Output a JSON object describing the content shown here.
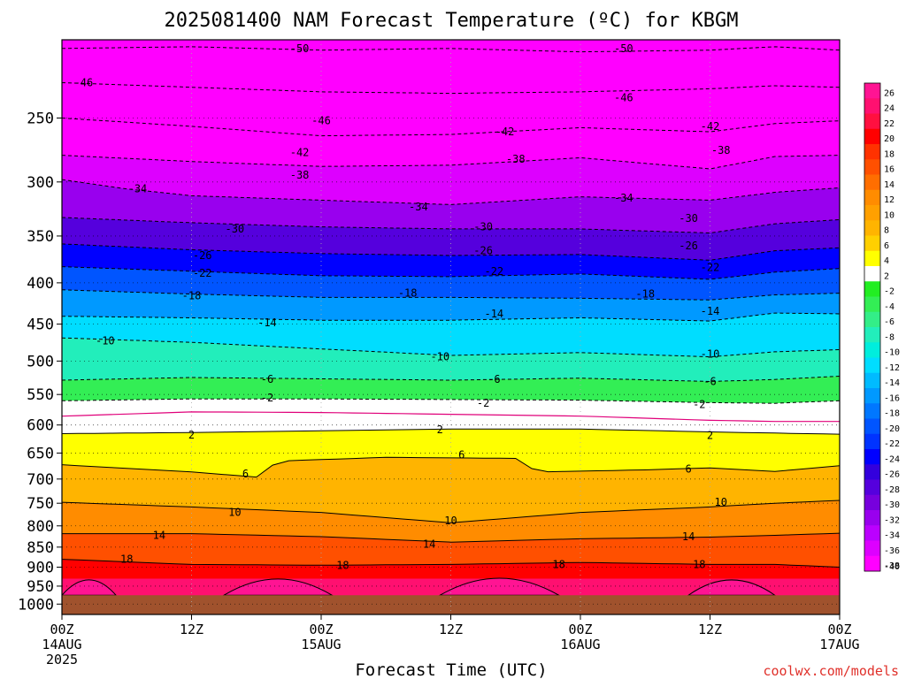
{
  "chart_data": {
    "type": "heatmap",
    "title": "2025081400 NAM Forecast Temperature (ºC) for KBGM",
    "xlabel": "Forecast Time (UTC)",
    "ylabel": "",
    "credit": "coolwx.com/models",
    "y_ticks": [
      "250",
      "300",
      "350",
      "400",
      "450",
      "500",
      "550",
      "600",
      "650",
      "700",
      "750",
      "800",
      "850",
      "900",
      "950",
      "1000"
    ],
    "ylim": [
      200,
      1030
    ],
    "y_scale": "log-pressure",
    "x_ticks": [
      {
        "label": "00Z",
        "sub1": "14AUG",
        "sub2": "2025"
      },
      {
        "label": "12Z",
        "sub1": "",
        "sub2": ""
      },
      {
        "label": "00Z",
        "sub1": "15AUG",
        "sub2": ""
      },
      {
        "label": "12Z",
        "sub1": "",
        "sub2": ""
      },
      {
        "label": "00Z",
        "sub1": "16AUG",
        "sub2": ""
      },
      {
        "label": "12Z",
        "sub1": "",
        "sub2": ""
      },
      {
        "label": "00Z",
        "sub1": "17AUG",
        "sub2": ""
      },
      {
        "label": "12Z",
        "sub1": "",
        "sub2": ""
      }
    ],
    "colorbar": {
      "labels": [
        "26",
        "24",
        "22",
        "20",
        "18",
        "16",
        "14",
        "12",
        "10",
        "8",
        "6",
        "4",
        "2",
        "-2",
        "-4",
        "-6",
        "-8",
        "-10",
        "-12",
        "-14",
        "-16",
        "-18",
        "-20",
        "-22",
        "-24",
        "-26",
        "-28",
        "-30",
        "-32",
        "-34",
        "-36",
        "-38",
        "-40"
      ],
      "colors": [
        "#ff1493",
        "#ff1070",
        "#ff1040",
        "#ff0000",
        "#ff3200",
        "#ff5000",
        "#ff6e00",
        "#ff8c00",
        "#ffa000",
        "#ffb400",
        "#ffd000",
        "#ffff00",
        "#ffffff",
        "#22ee22",
        "#33ee55",
        "#33ee88",
        "#22eebb",
        "#00eedd",
        "#00ddff",
        "#00bbff",
        "#0099ff",
        "#0077ff",
        "#0055ff",
        "#0033ff",
        "#0000ff",
        "#3300dd",
        "#5500dd",
        "#7700dd",
        "#9900ee",
        "#bb00ff",
        "#dd00ff",
        "#ff00ff"
      ]
    },
    "contours": [
      {
        "label": "-50",
        "dashed": true,
        "points": [
          [
            0,
            205
          ],
          [
            12,
            204
          ],
          [
            24,
            206
          ],
          [
            36,
            205
          ],
          [
            48,
            207
          ],
          [
            60,
            206
          ],
          [
            66,
            204
          ],
          [
            72,
            206
          ]
        ]
      },
      {
        "label": "-46",
        "dashed": true,
        "points": [
          [
            0,
            226
          ],
          [
            12,
            229
          ],
          [
            24,
            232
          ],
          [
            36,
            233
          ],
          [
            48,
            232
          ],
          [
            60,
            230
          ],
          [
            66,
            228
          ],
          [
            72,
            229
          ]
        ]
      },
      {
        "label": "-42",
        "dashed": true,
        "points": [
          [
            0,
            250
          ],
          [
            12,
            256
          ],
          [
            24,
            263
          ],
          [
            36,
            262
          ],
          [
            48,
            257
          ],
          [
            60,
            260
          ],
          [
            66,
            254
          ],
          [
            72,
            252
          ]
        ]
      },
      {
        "label": "-38",
        "dashed": true,
        "points": [
          [
            0,
            278
          ],
          [
            12,
            283
          ],
          [
            24,
            287
          ],
          [
            36,
            286
          ],
          [
            48,
            280
          ],
          [
            60,
            289
          ],
          [
            66,
            279
          ],
          [
            72,
            278
          ]
        ]
      },
      {
        "label": "-34",
        "dashed": true,
        "points": [
          [
            0,
            298
          ],
          [
            6,
            306
          ],
          [
            12,
            312
          ],
          [
            24,
            316
          ],
          [
            36,
            320
          ],
          [
            48,
            313
          ],
          [
            60,
            316
          ],
          [
            66,
            309
          ],
          [
            72,
            305
          ]
        ]
      },
      {
        "label": "-30",
        "dashed": true,
        "points": [
          [
            0,
            332
          ],
          [
            12,
            337
          ],
          [
            24,
            341
          ],
          [
            36,
            343
          ],
          [
            48,
            343
          ],
          [
            60,
            347
          ],
          [
            66,
            338
          ],
          [
            72,
            334
          ]
        ]
      },
      {
        "label": "-26",
        "dashed": true,
        "points": [
          [
            0,
            358
          ],
          [
            12,
            364
          ],
          [
            24,
            368
          ],
          [
            36,
            370
          ],
          [
            48,
            369
          ],
          [
            60,
            375
          ],
          [
            66,
            365
          ],
          [
            72,
            362
          ]
        ]
      },
      {
        "label": "-22",
        "dashed": true,
        "points": [
          [
            0,
            382
          ],
          [
            12,
            387
          ],
          [
            24,
            392
          ],
          [
            36,
            393
          ],
          [
            48,
            390
          ],
          [
            60,
            396
          ],
          [
            66,
            388
          ],
          [
            72,
            384
          ]
        ]
      },
      {
        "label": "-18",
        "dashed": true,
        "points": [
          [
            0,
            408
          ],
          [
            12,
            413
          ],
          [
            24,
            417
          ],
          [
            36,
            417
          ],
          [
            48,
            418
          ],
          [
            60,
            420
          ],
          [
            66,
            414
          ],
          [
            72,
            412
          ]
        ]
      },
      {
        "label": "-14",
        "dashed": true,
        "points": [
          [
            0,
            440
          ],
          [
            12,
            442
          ],
          [
            24,
            445
          ],
          [
            36,
            445
          ],
          [
            48,
            442
          ],
          [
            60,
            446
          ],
          [
            66,
            436
          ],
          [
            72,
            437
          ]
        ]
      },
      {
        "label": "-10",
        "dashed": true,
        "points": [
          [
            0,
            468
          ],
          [
            12,
            474
          ],
          [
            24,
            483
          ],
          [
            36,
            492
          ],
          [
            48,
            488
          ],
          [
            60,
            494
          ],
          [
            66,
            487
          ],
          [
            72,
            484
          ]
        ]
      },
      {
        "label": "-6",
        "dashed": true,
        "points": [
          [
            0,
            528
          ],
          [
            12,
            524
          ],
          [
            24,
            526
          ],
          [
            36,
            528
          ],
          [
            48,
            525
          ],
          [
            60,
            530
          ],
          [
            66,
            527
          ],
          [
            72,
            522
          ]
        ]
      },
      {
        "label": "-2",
        "dashed": true,
        "points": [
          [
            0,
            560
          ],
          [
            12,
            557
          ],
          [
            24,
            557
          ],
          [
            36,
            558
          ],
          [
            48,
            559
          ],
          [
            60,
            563
          ],
          [
            66,
            564
          ],
          [
            72,
            560
          ]
        ]
      },
      {
        "label": "0",
        "dashed": false,
        "color": "#e0007a",
        "points": [
          [
            0,
            585
          ],
          [
            12,
            578
          ],
          [
            24,
            579
          ],
          [
            36,
            582
          ],
          [
            48,
            585
          ],
          [
            60,
            592
          ],
          [
            66,
            594
          ],
          [
            72,
            594
          ]
        ]
      },
      {
        "label": "2",
        "dashed": false,
        "points": [
          [
            0,
            615
          ],
          [
            12,
            613
          ],
          [
            24,
            610
          ],
          [
            36,
            607
          ],
          [
            48,
            607
          ],
          [
            60,
            612
          ],
          [
            66,
            614
          ],
          [
            72,
            616
          ]
        ]
      },
      {
        "label": "6",
        "dashed": false,
        "points": [
          [
            0,
            672
          ],
          [
            12,
            686
          ],
          [
            18,
            696
          ],
          [
            20,
            665
          ],
          [
            30,
            658
          ],
          [
            42,
            660
          ],
          [
            44,
            686
          ],
          [
            54,
            682
          ],
          [
            60,
            678
          ],
          [
            66,
            685
          ],
          [
            72,
            674
          ]
        ]
      },
      {
        "label": "10",
        "dashed": false,
        "points": [
          [
            0,
            748
          ],
          [
            12,
            758
          ],
          [
            24,
            770
          ],
          [
            36,
            793
          ],
          [
            48,
            770
          ],
          [
            60,
            758
          ],
          [
            66,
            750
          ],
          [
            72,
            744
          ]
        ]
      },
      {
        "label": "14",
        "dashed": false,
        "points": [
          [
            0,
            818
          ],
          [
            12,
            818
          ],
          [
            24,
            825
          ],
          [
            36,
            838
          ],
          [
            48,
            830
          ],
          [
            60,
            826
          ],
          [
            66,
            822
          ],
          [
            72,
            817
          ]
        ]
      },
      {
        "label": "18",
        "dashed": false,
        "points": [
          [
            0,
            880
          ],
          [
            12,
            893
          ],
          [
            24,
            895
          ],
          [
            36,
            893
          ],
          [
            48,
            888
          ],
          [
            60,
            893
          ],
          [
            66,
            893
          ],
          [
            72,
            900
          ]
        ]
      }
    ],
    "labels": [
      {
        "text": "-50",
        "x": 22,
        "y": 205
      },
      {
        "text": "-50",
        "x": 52,
        "y": 205
      },
      {
        "text": "-46",
        "x": 2,
        "y": 226
      },
      {
        "text": "-46",
        "x": 24,
        "y": 252
      },
      {
        "text": "-46",
        "x": 52,
        "y": 236
      },
      {
        "text": "-42",
        "x": 22,
        "y": 276
      },
      {
        "text": "-42",
        "x": 41,
        "y": 260
      },
      {
        "text": "-42",
        "x": 60,
        "y": 256
      },
      {
        "text": "-38",
        "x": 22,
        "y": 294
      },
      {
        "text": "-38",
        "x": 42,
        "y": 281
      },
      {
        "text": "-38",
        "x": 61,
        "y": 274
      },
      {
        "text": "-34",
        "x": 7,
        "y": 306
      },
      {
        "text": "-34",
        "x": 33,
        "y": 322
      },
      {
        "text": "-34",
        "x": 52,
        "y": 314
      },
      {
        "text": "-30",
        "x": 16,
        "y": 343
      },
      {
        "text": "-30",
        "x": 39,
        "y": 341
      },
      {
        "text": "-30",
        "x": 58,
        "y": 333
      },
      {
        "text": "-26",
        "x": 13,
        "y": 370
      },
      {
        "text": "-26",
        "x": 39,
        "y": 365
      },
      {
        "text": "-26",
        "x": 58,
        "y": 360
      },
      {
        "text": "-22",
        "x": 13,
        "y": 389
      },
      {
        "text": "-22",
        "x": 40,
        "y": 387
      },
      {
        "text": "-22",
        "x": 60,
        "y": 383
      },
      {
        "text": "-18",
        "x": 12,
        "y": 415
      },
      {
        "text": "-18",
        "x": 32,
        "y": 412
      },
      {
        "text": "-18",
        "x": 54,
        "y": 413
      },
      {
        "text": "-14",
        "x": 19,
        "y": 448
      },
      {
        "text": "-14",
        "x": 40,
        "y": 437
      },
      {
        "text": "-14",
        "x": 60,
        "y": 434
      },
      {
        "text": "-10",
        "x": 4,
        "y": 472
      },
      {
        "text": "-10",
        "x": 35,
        "y": 494
      },
      {
        "text": "-10",
        "x": 60,
        "y": 490
      },
      {
        "text": "-6",
        "x": 19,
        "y": 527
      },
      {
        "text": "-6",
        "x": 40,
        "y": 527
      },
      {
        "text": "-6",
        "x": 60,
        "y": 530
      },
      {
        "text": "-2",
        "x": 19,
        "y": 555
      },
      {
        "text": "-2",
        "x": 39,
        "y": 564
      },
      {
        "text": "-2",
        "x": 59,
        "y": 566
      },
      {
        "text": "2",
        "x": 12,
        "y": 617
      },
      {
        "text": "2",
        "x": 35,
        "y": 608
      },
      {
        "text": "2",
        "x": 60,
        "y": 618
      },
      {
        "text": "6",
        "x": 17,
        "y": 690
      },
      {
        "text": "6",
        "x": 37,
        "y": 653
      },
      {
        "text": "6",
        "x": 58,
        "y": 680
      },
      {
        "text": "10",
        "x": 16,
        "y": 770
      },
      {
        "text": "10",
        "x": 36,
        "y": 788
      },
      {
        "text": "10",
        "x": 61,
        "y": 748
      },
      {
        "text": "14",
        "x": 9,
        "y": 822
      },
      {
        "text": "14",
        "x": 34,
        "y": 843
      },
      {
        "text": "14",
        "x": 58,
        "y": 825
      },
      {
        "text": "18",
        "x": 6,
        "y": 880
      },
      {
        "text": "18",
        "x": 26,
        "y": 895
      },
      {
        "text": "18",
        "x": 46,
        "y": 893
      },
      {
        "text": "18",
        "x": 59,
        "y": 893
      }
    ],
    "surface": [
      {
        "x": [
          0,
          5
        ],
        "p": 935
      },
      {
        "x": [
          15,
          25
        ],
        "p": 930
      },
      {
        "x": [
          35,
          46
        ],
        "p": 926
      },
      {
        "x": [
          58,
          66
        ],
        "p": 935
      }
    ],
    "ground_pressure": 975,
    "ground_color": "#a0522d"
  }
}
